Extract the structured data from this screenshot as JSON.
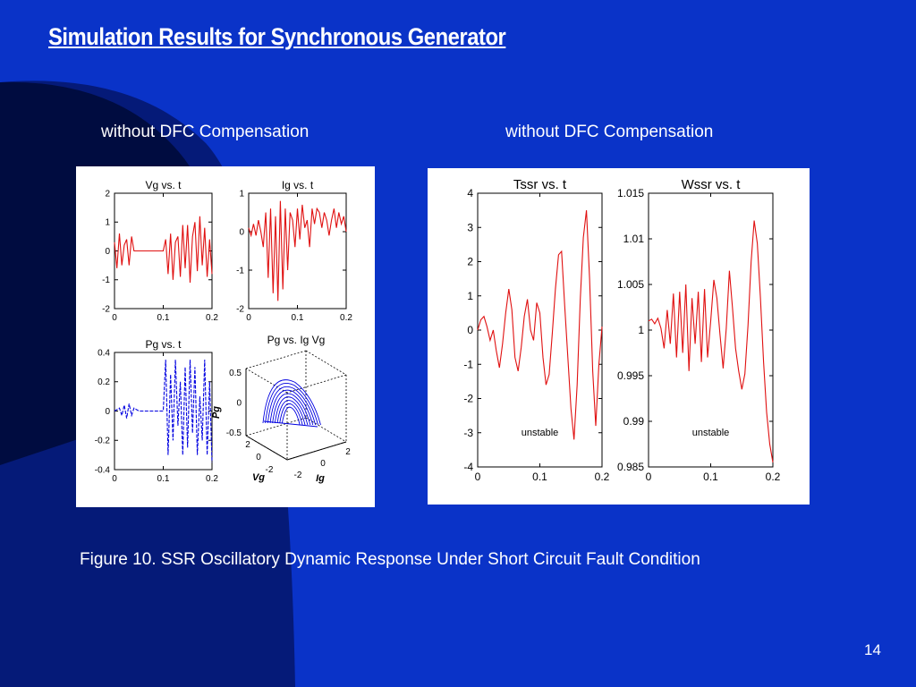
{
  "slide": {
    "title": "Simulation Results for Synchronous Generator",
    "left_caption": "without DFC Compensation",
    "right_caption": "without DFC Compensation",
    "figure_caption": "Figure 10. SSR Oscillatory Dynamic Response Under Short Circuit Fault Condition",
    "page_number": "14"
  },
  "colors": {
    "background": "#0a33c8",
    "red_trace": "#e01010",
    "blue_trace": "#0000e0"
  },
  "chart_data": [
    {
      "type": "line",
      "title": "Vg vs. t",
      "color": "red",
      "xlim": [
        0,
        0.2
      ],
      "ylim": [
        -2,
        2
      ],
      "xticks": [
        "0",
        "0.1",
        "0.2"
      ],
      "yticks": [
        "2",
        "1",
        "0",
        "-1",
        "-2"
      ],
      "series": [
        {
          "x": [
            0,
            0.005,
            0.01,
            0.015,
            0.02,
            0.025,
            0.03,
            0.035,
            0.04,
            0.045,
            0.05,
            0.1,
            0.105,
            0.11,
            0.115,
            0.12,
            0.125,
            0.13,
            0.135,
            0.14,
            0.145,
            0.15,
            0.155,
            0.16,
            0.165,
            0.17,
            0.175,
            0.18,
            0.185,
            0.19,
            0.195,
            0.2
          ],
          "y": [
            0.3,
            -0.6,
            0.6,
            -0.5,
            0.2,
            0.4,
            -0.5,
            0.5,
            0,
            0,
            0,
            0,
            0.4,
            -0.8,
            0.6,
            -1.0,
            0.3,
            0.5,
            -0.9,
            0.9,
            -0.6,
            0.9,
            -1.1,
            0.5,
            1.0,
            -0.7,
            1.2,
            -0.5,
            0.8,
            -0.9,
            0.4,
            -0.8
          ]
        }
      ]
    },
    {
      "type": "line",
      "title": "Ig vs. t",
      "color": "red",
      "xlim": [
        0,
        0.2
      ],
      "ylim": [
        -2,
        1
      ],
      "xticks": [
        "0",
        "0.1",
        "0.2"
      ],
      "yticks": [
        "1",
        "0",
        "-1",
        "-2"
      ],
      "series": [
        {
          "x": [
            0,
            0.005,
            0.01,
            0.015,
            0.02,
            0.025,
            0.03,
            0.035,
            0.04,
            0.045,
            0.05,
            0.055,
            0.06,
            0.065,
            0.07,
            0.075,
            0.08,
            0.085,
            0.09,
            0.095,
            0.1,
            0.105,
            0.11,
            0.115,
            0.12,
            0.125,
            0.13,
            0.135,
            0.14,
            0.145,
            0.15,
            0.155,
            0.16,
            0.165,
            0.17,
            0.175,
            0.18,
            0.185,
            0.19,
            0.195,
            0.2
          ],
          "y": [
            0.1,
            -0.1,
            0.2,
            -0.1,
            0.3,
            0,
            -0.4,
            0.5,
            -1.2,
            0.6,
            -1.6,
            0.4,
            -1.8,
            0.8,
            -1.5,
            0.6,
            -1.0,
            0.5,
            0.3,
            -0.4,
            0.6,
            -0.2,
            0.7,
            0.1,
            0.3,
            -0.4,
            0.6,
            0.2,
            0.6,
            0.5,
            0.1,
            0.5,
            0.3,
            -0.1,
            0.3,
            0.6,
            0.1,
            0.5,
            0.2,
            0.4,
            0.0
          ]
        }
      ]
    },
    {
      "type": "line",
      "title": "Pg vs. t",
      "color": "blue",
      "xlim": [
        0,
        0.2
      ],
      "ylim": [
        -0.4,
        0.4
      ],
      "xticks": [
        "0",
        "0.1",
        "0.2"
      ],
      "yticks": [
        "0.4",
        "0.2",
        "0",
        "-0.2",
        "-0.4"
      ],
      "series": [
        {
          "x": [
            0,
            0.01,
            0.015,
            0.02,
            0.025,
            0.03,
            0.035,
            0.04,
            0.05,
            0.1,
            0.105,
            0.11,
            0.115,
            0.12,
            0.125,
            0.13,
            0.135,
            0.14,
            0.145,
            0.15,
            0.155,
            0.16,
            0.165,
            0.17,
            0.175,
            0.18,
            0.185,
            0.19,
            0.195,
            0.2
          ],
          "y": [
            0.0,
            0.02,
            -0.03,
            0.04,
            -0.05,
            0.05,
            -0.03,
            0.02,
            0.0,
            0.0,
            0.35,
            -0.3,
            0.25,
            -0.2,
            0.35,
            -0.1,
            0.2,
            -0.3,
            0.3,
            -0.25,
            0.35,
            -0.15,
            0.3,
            -0.3,
            0.1,
            -0.2,
            0.35,
            -0.3,
            0.2,
            -0.35
          ]
        }
      ]
    },
    {
      "type": "scatter",
      "title": "Pg vs. Ig Vg",
      "color": "blue",
      "zlim": [
        -0.5,
        0.5
      ],
      "zticks": [
        "0.5",
        "0",
        "-0.5"
      ],
      "vg_ticks": [
        "2",
        "0",
        "-2"
      ],
      "ig_ticks": [
        "-2",
        "0",
        "2"
      ],
      "zlabel": "Pg",
      "xlabel": "Vg",
      "ylabel": "Ig",
      "note": "3D trajectory"
    },
    {
      "type": "line",
      "title": "Tssr vs. t",
      "color": "red",
      "xlim": [
        0,
        0.2
      ],
      "ylim": [
        -4,
        4
      ],
      "xticks": [
        "0",
        "0.1",
        "0.2"
      ],
      "yticks": [
        "4",
        "3",
        "2",
        "1",
        "0",
        "-1",
        "-2",
        "-3",
        "-4"
      ],
      "annotation": "unstable",
      "series": [
        {
          "x": [
            0,
            0.005,
            0.01,
            0.015,
            0.02,
            0.025,
            0.03,
            0.035,
            0.04,
            0.045,
            0.05,
            0.055,
            0.06,
            0.065,
            0.07,
            0.075,
            0.08,
            0.085,
            0.09,
            0.095,
            0.1,
            0.105,
            0.11,
            0.115,
            0.12,
            0.125,
            0.13,
            0.135,
            0.14,
            0.145,
            0.15,
            0.155,
            0.16,
            0.165,
            0.17,
            0.175,
            0.18,
            0.185,
            0.19,
            0.195,
            0.2
          ],
          "y": [
            0.0,
            0.3,
            0.4,
            0.1,
            -0.3,
            0.0,
            -0.6,
            -1.1,
            -0.4,
            0.5,
            1.2,
            0.6,
            -0.8,
            -1.2,
            -0.5,
            0.4,
            0.9,
            0.0,
            -0.3,
            0.8,
            0.5,
            -0.8,
            -1.6,
            -1.3,
            -0.1,
            1.2,
            2.2,
            2.3,
            0.7,
            -0.8,
            -2.3,
            -3.2,
            -1.6,
            0.9,
            2.7,
            3.5,
            1.5,
            -1.2,
            -2.8,
            -1.0,
            0.1
          ]
        }
      ]
    },
    {
      "type": "line",
      "title": "Wssr vs. t",
      "color": "red",
      "xlim": [
        0,
        0.2
      ],
      "ylim": [
        0.985,
        1.015
      ],
      "xticks": [
        "0",
        "0.1",
        "0.2"
      ],
      "yticks": [
        "1.015",
        "1.01",
        "1.005",
        "1",
        "0.995",
        "0.99",
        "0.985"
      ],
      "annotation": "unstable",
      "series": [
        {
          "x": [
            0,
            0.005,
            0.01,
            0.015,
            0.02,
            0.025,
            0.03,
            0.035,
            0.04,
            0.045,
            0.05,
            0.055,
            0.06,
            0.065,
            0.07,
            0.075,
            0.08,
            0.085,
            0.09,
            0.095,
            0.1,
            0.105,
            0.11,
            0.115,
            0.12,
            0.125,
            0.13,
            0.135,
            0.14,
            0.145,
            0.15,
            0.155,
            0.16,
            0.165,
            0.17,
            0.175,
            0.18,
            0.185,
            0.19,
            0.195,
            0.2
          ],
          "y": [
            1.001,
            1.0012,
            1.0007,
            1.0013,
            1.0002,
            0.998,
            1.0022,
            0.9985,
            1.004,
            0.997,
            1.0042,
            0.9975,
            1.005,
            0.9955,
            1.0035,
            0.9985,
            1.0042,
            0.9965,
            1.0045,
            0.997,
            1.001,
            1.0055,
            1.0035,
            0.9995,
            0.9958,
            1.0002,
            1.0065,
            1.0025,
            0.998,
            0.9955,
            0.9935,
            0.9952,
            1.0005,
            1.0075,
            1.012,
            1.0095,
            1.0035,
            0.9965,
            0.991,
            0.9875,
            0.9855
          ]
        }
      ]
    }
  ]
}
